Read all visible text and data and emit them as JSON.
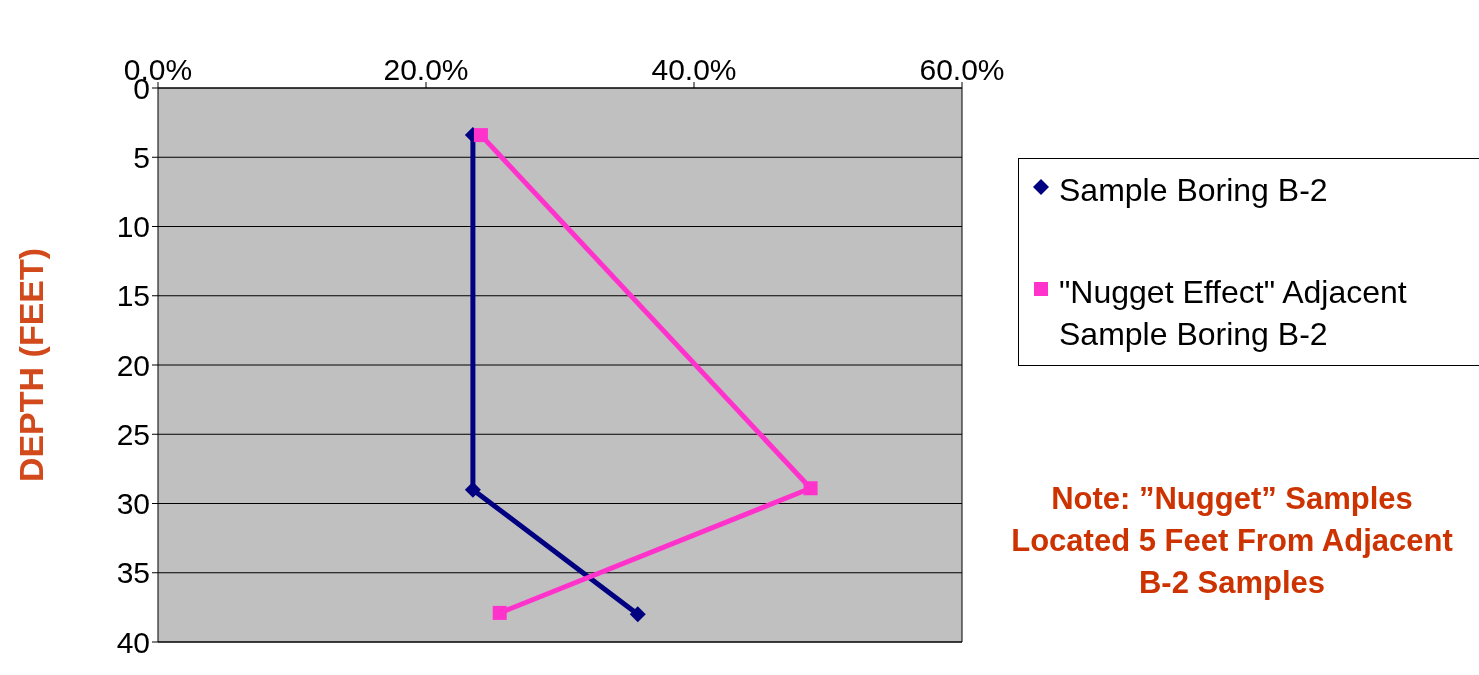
{
  "chart_data": {
    "type": "line",
    "ylabel": "DEPTH (FEET)",
    "xlim": [
      0,
      60
    ],
    "xticks": [
      {
        "value": 0,
        "label": "0.0%"
      },
      {
        "value": 20,
        "label": "20.0%"
      },
      {
        "value": 40,
        "label": "40.0%"
      },
      {
        "value": 60,
        "label": "60.0%"
      }
    ],
    "ylim": [
      40,
      0
    ],
    "yticks": [
      0,
      5,
      10,
      15,
      20,
      25,
      30,
      35,
      40
    ],
    "grid": "y",
    "legend": "right",
    "series": [
      {
        "name": "Sample Boring B-2",
        "color": "#000080",
        "marker": "diamond",
        "x": [
          23.5,
          23.5,
          35.8
        ],
        "values": [
          3.4,
          29,
          38
        ]
      },
      {
        "name": "\"Nugget Effect\" Adjacent Sample Boring B-2",
        "color": "#ff33cc",
        "marker": "square",
        "x": [
          24.1,
          48.7,
          25.5
        ],
        "values": [
          3.4,
          28.9,
          37.9
        ]
      }
    ],
    "annotations": [
      "Note:  ”Nugget” Samples Located 5 Feet From Adjacent B-2 Samples"
    ]
  }
}
